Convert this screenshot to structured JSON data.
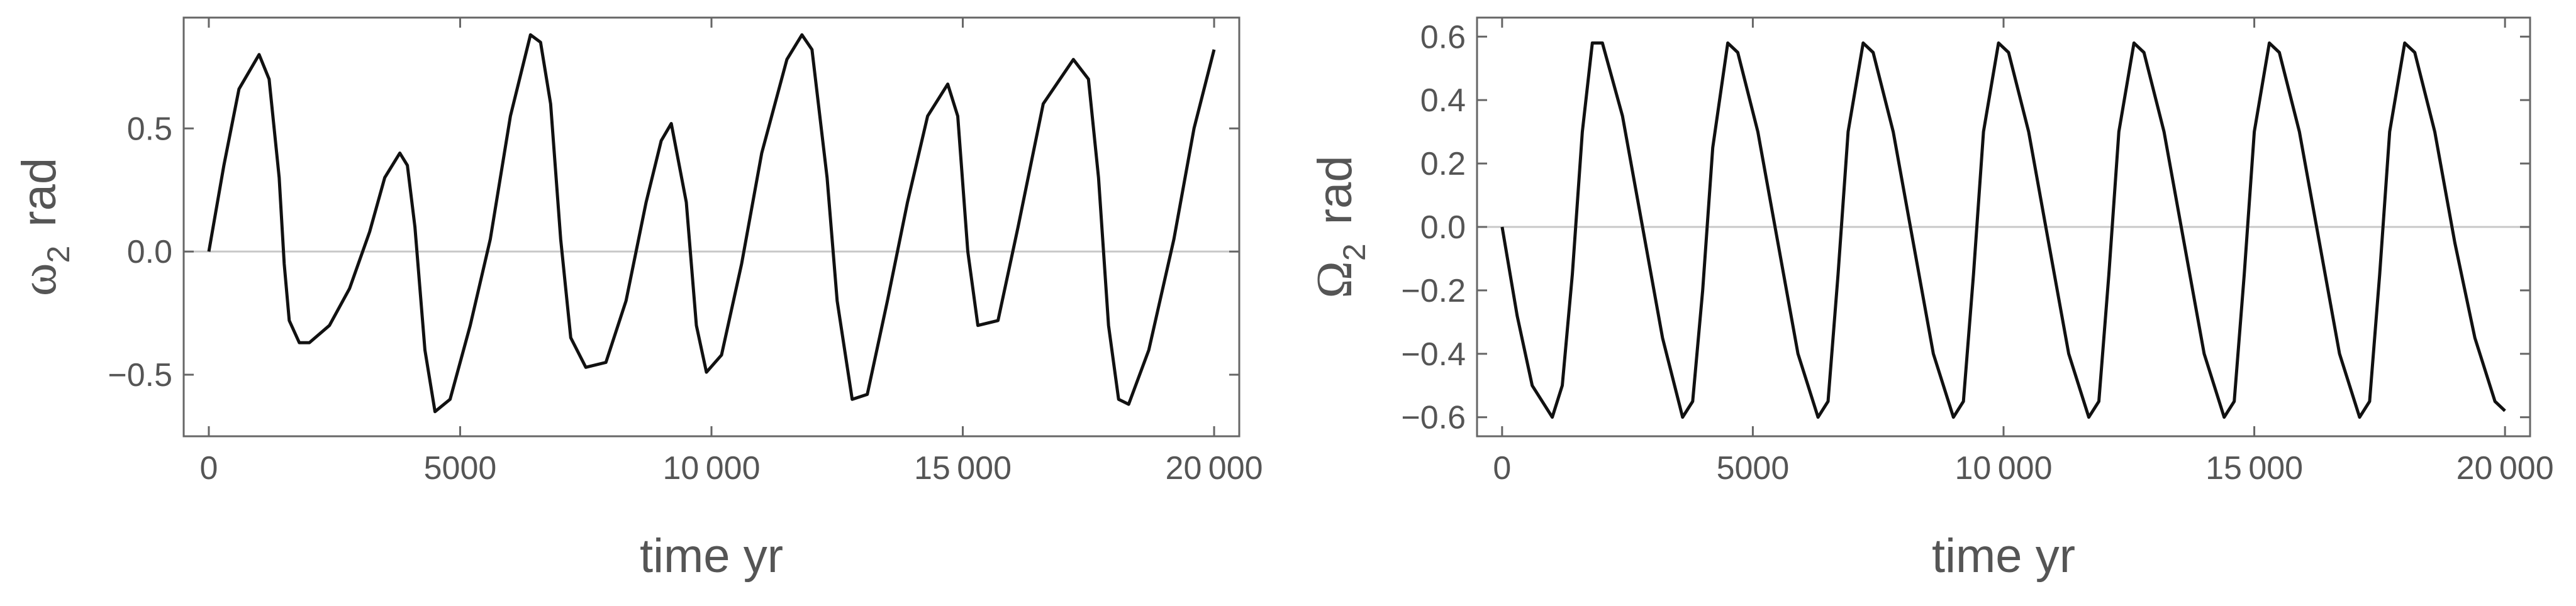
{
  "chart_data": [
    {
      "type": "line",
      "title": "",
      "xlabel": "time  yr",
      "ylabel_symbol": "ω",
      "ylabel_subscript": "2",
      "ylabel_unit": "rad",
      "xlim": [
        -500,
        20500
      ],
      "ylim": [
        -0.75,
        0.95
      ],
      "xticks": [
        0,
        5000,
        10000,
        15000,
        20000
      ],
      "xtick_labels": [
        "0",
        "5000",
        "10 000",
        "15 000",
        "20 000"
      ],
      "yticks": [
        -0.5,
        0.0,
        0.5
      ],
      "ytick_labels": [
        "−0.5",
        "0.0",
        "0.5"
      ],
      "zero_line": true,
      "grid": false,
      "legend": "none",
      "series": [
        {
          "values": [
            [
              0,
              0.0
            ],
            [
              300,
              0.35
            ],
            [
              600,
              0.66
            ],
            [
              1000,
              0.8
            ],
            [
              1200,
              0.7
            ],
            [
              1400,
              0.3
            ],
            [
              1500,
              -0.05
            ],
            [
              1600,
              -0.28
            ],
            [
              1800,
              -0.37
            ],
            [
              2000,
              -0.37
            ],
            [
              2400,
              -0.3
            ],
            [
              2800,
              -0.15
            ],
            [
              3200,
              0.08
            ],
            [
              3500,
              0.3
            ],
            [
              3800,
              0.4
            ],
            [
              3950,
              0.35
            ],
            [
              4100,
              0.1
            ],
            [
              4300,
              -0.4
            ],
            [
              4500,
              -0.65
            ],
            [
              4800,
              -0.6
            ],
            [
              5200,
              -0.3
            ],
            [
              5600,
              0.05
            ],
            [
              6000,
              0.55
            ],
            [
              6400,
              0.88
            ],
            [
              6600,
              0.85
            ],
            [
              6800,
              0.6
            ],
            [
              7000,
              0.05
            ],
            [
              7200,
              -0.35
            ],
            [
              7500,
              -0.47
            ],
            [
              7900,
              -0.45
            ],
            [
              8300,
              -0.2
            ],
            [
              8700,
              0.2
            ],
            [
              9000,
              0.45
            ],
            [
              9200,
              0.52
            ],
            [
              9500,
              0.2
            ],
            [
              9700,
              -0.3
            ],
            [
              9900,
              -0.49
            ],
            [
              10200,
              -0.42
            ],
            [
              10600,
              -0.05
            ],
            [
              11000,
              0.4
            ],
            [
              11500,
              0.78
            ],
            [
              11800,
              0.88
            ],
            [
              12000,
              0.82
            ],
            [
              12300,
              0.3
            ],
            [
              12500,
              -0.2
            ],
            [
              12800,
              -0.6
            ],
            [
              13100,
              -0.58
            ],
            [
              13500,
              -0.2
            ],
            [
              13900,
              0.2
            ],
            [
              14300,
              0.55
            ],
            [
              14700,
              0.68
            ],
            [
              14900,
              0.55
            ],
            [
              15100,
              0.0
            ],
            [
              15300,
              -0.3
            ],
            [
              15700,
              -0.28
            ],
            [
              16100,
              0.1
            ],
            [
              16600,
              0.6
            ],
            [
              17200,
              0.78
            ],
            [
              17500,
              0.7
            ],
            [
              17700,
              0.3
            ],
            [
              17900,
              -0.3
            ],
            [
              18100,
              -0.6
            ],
            [
              18300,
              -0.62
            ],
            [
              18700,
              -0.4
            ],
            [
              19200,
              0.05
            ],
            [
              19600,
              0.5
            ],
            [
              20000,
              0.82
            ]
          ]
        }
      ]
    },
    {
      "type": "line",
      "title": "",
      "xlabel": "time  yr",
      "ylabel_symbol": "Ω",
      "ylabel_subscript": "2",
      "ylabel_unit": "rad",
      "xlim": [
        -500,
        20500
      ],
      "ylim": [
        -0.66,
        0.66
      ],
      "xticks": [
        0,
        5000,
        10000,
        15000,
        20000
      ],
      "xtick_labels": [
        "0",
        "5000",
        "10 000",
        "15 000",
        "20 000"
      ],
      "yticks": [
        -0.6,
        -0.4,
        -0.2,
        0.0,
        0.2,
        0.4,
        0.6
      ],
      "ytick_labels": [
        "−0.6",
        "−0.4",
        "−0.2",
        "0.0",
        "0.2",
        "0.4",
        "0.6"
      ],
      "zero_line": true,
      "grid": false,
      "legend": "none",
      "series": [
        {
          "values": [
            [
              0,
              0.0
            ],
            [
              300,
              -0.28
            ],
            [
              600,
              -0.5
            ],
            [
              1000,
              -0.6
            ],
            [
              1200,
              -0.5
            ],
            [
              1400,
              -0.15
            ],
            [
              1600,
              0.3
            ],
            [
              1800,
              0.58
            ],
            [
              2000,
              0.58
            ],
            [
              2400,
              0.35
            ],
            [
              2800,
              0.0
            ],
            [
              3200,
              -0.35
            ],
            [
              3600,
              -0.6
            ],
            [
              3800,
              -0.55
            ],
            [
              4000,
              -0.2
            ],
            [
              4200,
              0.25
            ],
            [
              4500,
              0.58
            ],
            [
              4700,
              0.55
            ],
            [
              5100,
              0.3
            ],
            [
              5500,
              -0.05
            ],
            [
              5900,
              -0.4
            ],
            [
              6300,
              -0.6
            ],
            [
              6500,
              -0.55
            ],
            [
              6700,
              -0.15
            ],
            [
              6900,
              0.3
            ],
            [
              7200,
              0.58
            ],
            [
              7400,
              0.55
            ],
            [
              7800,
              0.3
            ],
            [
              8200,
              -0.05
            ],
            [
              8600,
              -0.4
            ],
            [
              9000,
              -0.6
            ],
            [
              9200,
              -0.55
            ],
            [
              9400,
              -0.15
            ],
            [
              9600,
              0.3
            ],
            [
              9900,
              0.58
            ],
            [
              10100,
              0.55
            ],
            [
              10500,
              0.3
            ],
            [
              10900,
              -0.05
            ],
            [
              11300,
              -0.4
            ],
            [
              11700,
              -0.6
            ],
            [
              11900,
              -0.55
            ],
            [
              12100,
              -0.15
            ],
            [
              12300,
              0.3
            ],
            [
              12600,
              0.58
            ],
            [
              12800,
              0.55
            ],
            [
              13200,
              0.3
            ],
            [
              13600,
              -0.05
            ],
            [
              14000,
              -0.4
            ],
            [
              14400,
              -0.6
            ],
            [
              14600,
              -0.55
            ],
            [
              14800,
              -0.15
            ],
            [
              15000,
              0.3
            ],
            [
              15300,
              0.58
            ],
            [
              15500,
              0.55
            ],
            [
              15900,
              0.3
            ],
            [
              16300,
              -0.05
            ],
            [
              16700,
              -0.4
            ],
            [
              17100,
              -0.6
            ],
            [
              17300,
              -0.55
            ],
            [
              17500,
              -0.15
            ],
            [
              17700,
              0.3
            ],
            [
              18000,
              0.58
            ],
            [
              18200,
              0.55
            ],
            [
              18600,
              0.3
            ],
            [
              19000,
              -0.05
            ],
            [
              19400,
              -0.35
            ],
            [
              19800,
              -0.55
            ],
            [
              20000,
              -0.58
            ]
          ]
        }
      ]
    }
  ]
}
